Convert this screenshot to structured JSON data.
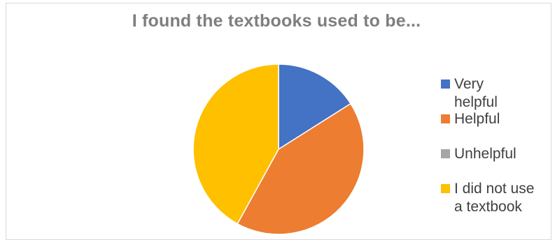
{
  "chart_data": {
    "type": "pie",
    "title": "I found the textbooks used to be...",
    "categories": [
      "Very helpful",
      "Helpful",
      "Unhelpful",
      "I did not use a textbook"
    ],
    "values": [
      16,
      42,
      0,
      42
    ],
    "colors": [
      "#4472c4",
      "#ed7d31",
      "#a5a5a5",
      "#ffc000"
    ],
    "legend_position": "right",
    "start_angle_deg": 0,
    "direction": "clockwise"
  }
}
